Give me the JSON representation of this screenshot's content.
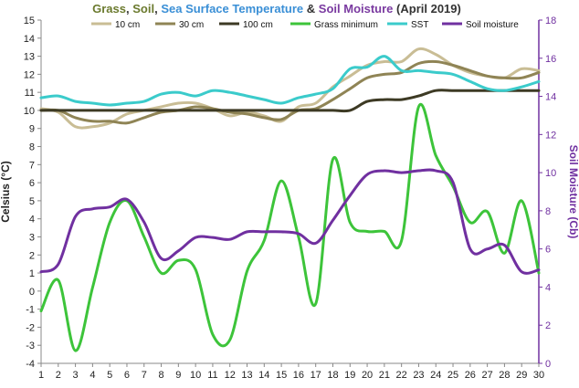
{
  "chart_data": {
    "type": "line",
    "title_parts": [
      {
        "text": "Grass",
        "color": "#6b7a2e"
      },
      {
        "text": ", ",
        "color": "#333333"
      },
      {
        "text": "Soil",
        "color": "#6b7a2e"
      },
      {
        "text": ", ",
        "color": "#333333"
      },
      {
        "text": "Sea Surface Temperature",
        "color": "#3a8fd6"
      },
      {
        "text": " & ",
        "color": "#333333"
      },
      {
        "text": "Soil Moisture",
        "color": "#7a3aa0"
      },
      {
        "text": " (April 2019)",
        "color": "#333333"
      }
    ],
    "ylabel": "Celsius (°C)",
    "y2label": "Soil Moisture (Cb)",
    "x": [
      1,
      2,
      3,
      4,
      5,
      6,
      7,
      8,
      9,
      10,
      11,
      12,
      13,
      14,
      15,
      16,
      17,
      18,
      19,
      20,
      21,
      22,
      23,
      24,
      25,
      26,
      27,
      28,
      29,
      30
    ],
    "xlim": [
      1,
      30
    ],
    "ylim": [
      -4,
      15
    ],
    "y2lim": [
      0,
      18
    ],
    "yticks": [
      -4,
      -3,
      -2,
      -1,
      0,
      1,
      2,
      3,
      4,
      5,
      6,
      7,
      8,
      9,
      10,
      11,
      12,
      13,
      14,
      15
    ],
    "y2ticks": [
      0,
      2,
      4,
      6,
      8,
      10,
      12,
      14,
      16,
      18
    ],
    "grid": false,
    "legend_position": "top",
    "series": [
      {
        "name": "10 cm",
        "color": "#c9bd95",
        "axis": "left",
        "values": [
          10.1,
          9.9,
          9.1,
          9.1,
          9.3,
          9.8,
          10.0,
          10.2,
          10.4,
          10.4,
          10.1,
          9.7,
          9.9,
          9.7,
          9.4,
          10.2,
          10.4,
          11.3,
          11.9,
          12.5,
          12.7,
          12.7,
          13.4,
          13.1,
          12.5,
          12.1,
          11.9,
          11.8,
          12.3,
          12.2
        ]
      },
      {
        "name": "30 cm",
        "color": "#8f8455",
        "axis": "left",
        "values": [
          10.0,
          10.0,
          9.6,
          9.4,
          9.4,
          9.3,
          9.6,
          9.9,
          10.0,
          10.2,
          10.1,
          9.9,
          9.8,
          9.6,
          9.5,
          10.0,
          10.1,
          10.6,
          11.2,
          11.8,
          12.0,
          12.1,
          12.6,
          12.7,
          12.5,
          12.2,
          11.9,
          11.8,
          11.8,
          12.1
        ]
      },
      {
        "name": "100 cm",
        "color": "#3d3a24",
        "axis": "left",
        "values": [
          10.0,
          10.0,
          10.0,
          10.0,
          10.0,
          10.0,
          10.0,
          10.0,
          10.0,
          10.0,
          10.0,
          10.0,
          10.0,
          10.0,
          10.0,
          10.0,
          10.0,
          10.0,
          10.0,
          10.5,
          10.6,
          10.6,
          10.8,
          11.1,
          11.1,
          11.1,
          11.1,
          11.1,
          11.1,
          11.1
        ]
      },
      {
        "name": "Grass minimum",
        "color": "#3dc43a",
        "axis": "left",
        "values": [
          -1.1,
          0.6,
          -3.3,
          0.2,
          3.8,
          5.0,
          3.0,
          1.0,
          1.7,
          1.2,
          -2.4,
          -2.7,
          1.1,
          2.8,
          6.1,
          3.0,
          -0.7,
          7.3,
          3.8,
          3.3,
          3.3,
          2.8,
          10.2,
          7.5,
          5.8,
          3.8,
          4.4,
          2.1,
          5.0,
          1.0
        ]
      },
      {
        "name": "SST",
        "color": "#3bcbcb",
        "axis": "left",
        "values": [
          10.7,
          10.8,
          10.5,
          10.4,
          10.3,
          10.4,
          10.5,
          10.9,
          11.0,
          10.8,
          11.1,
          11.0,
          10.8,
          10.6,
          10.4,
          10.7,
          10.9,
          11.2,
          12.3,
          12.4,
          13.0,
          12.2,
          12.2,
          12.1,
          12.0,
          11.6,
          11.2,
          11.1,
          11.3,
          11.6
        ]
      },
      {
        "name": "Soil moisture",
        "color": "#7030a0",
        "axis": "right",
        "values": [
          4.8,
          5.2,
          7.7,
          8.1,
          8.2,
          8.6,
          7.4,
          5.5,
          5.9,
          6.6,
          6.6,
          6.5,
          6.9,
          6.9,
          6.9,
          6.8,
          6.3,
          7.5,
          8.8,
          9.9,
          10.1,
          10.0,
          10.1,
          10.1,
          9.5,
          6.0,
          6.0,
          6.2,
          4.8,
          4.9
        ]
      }
    ]
  }
}
